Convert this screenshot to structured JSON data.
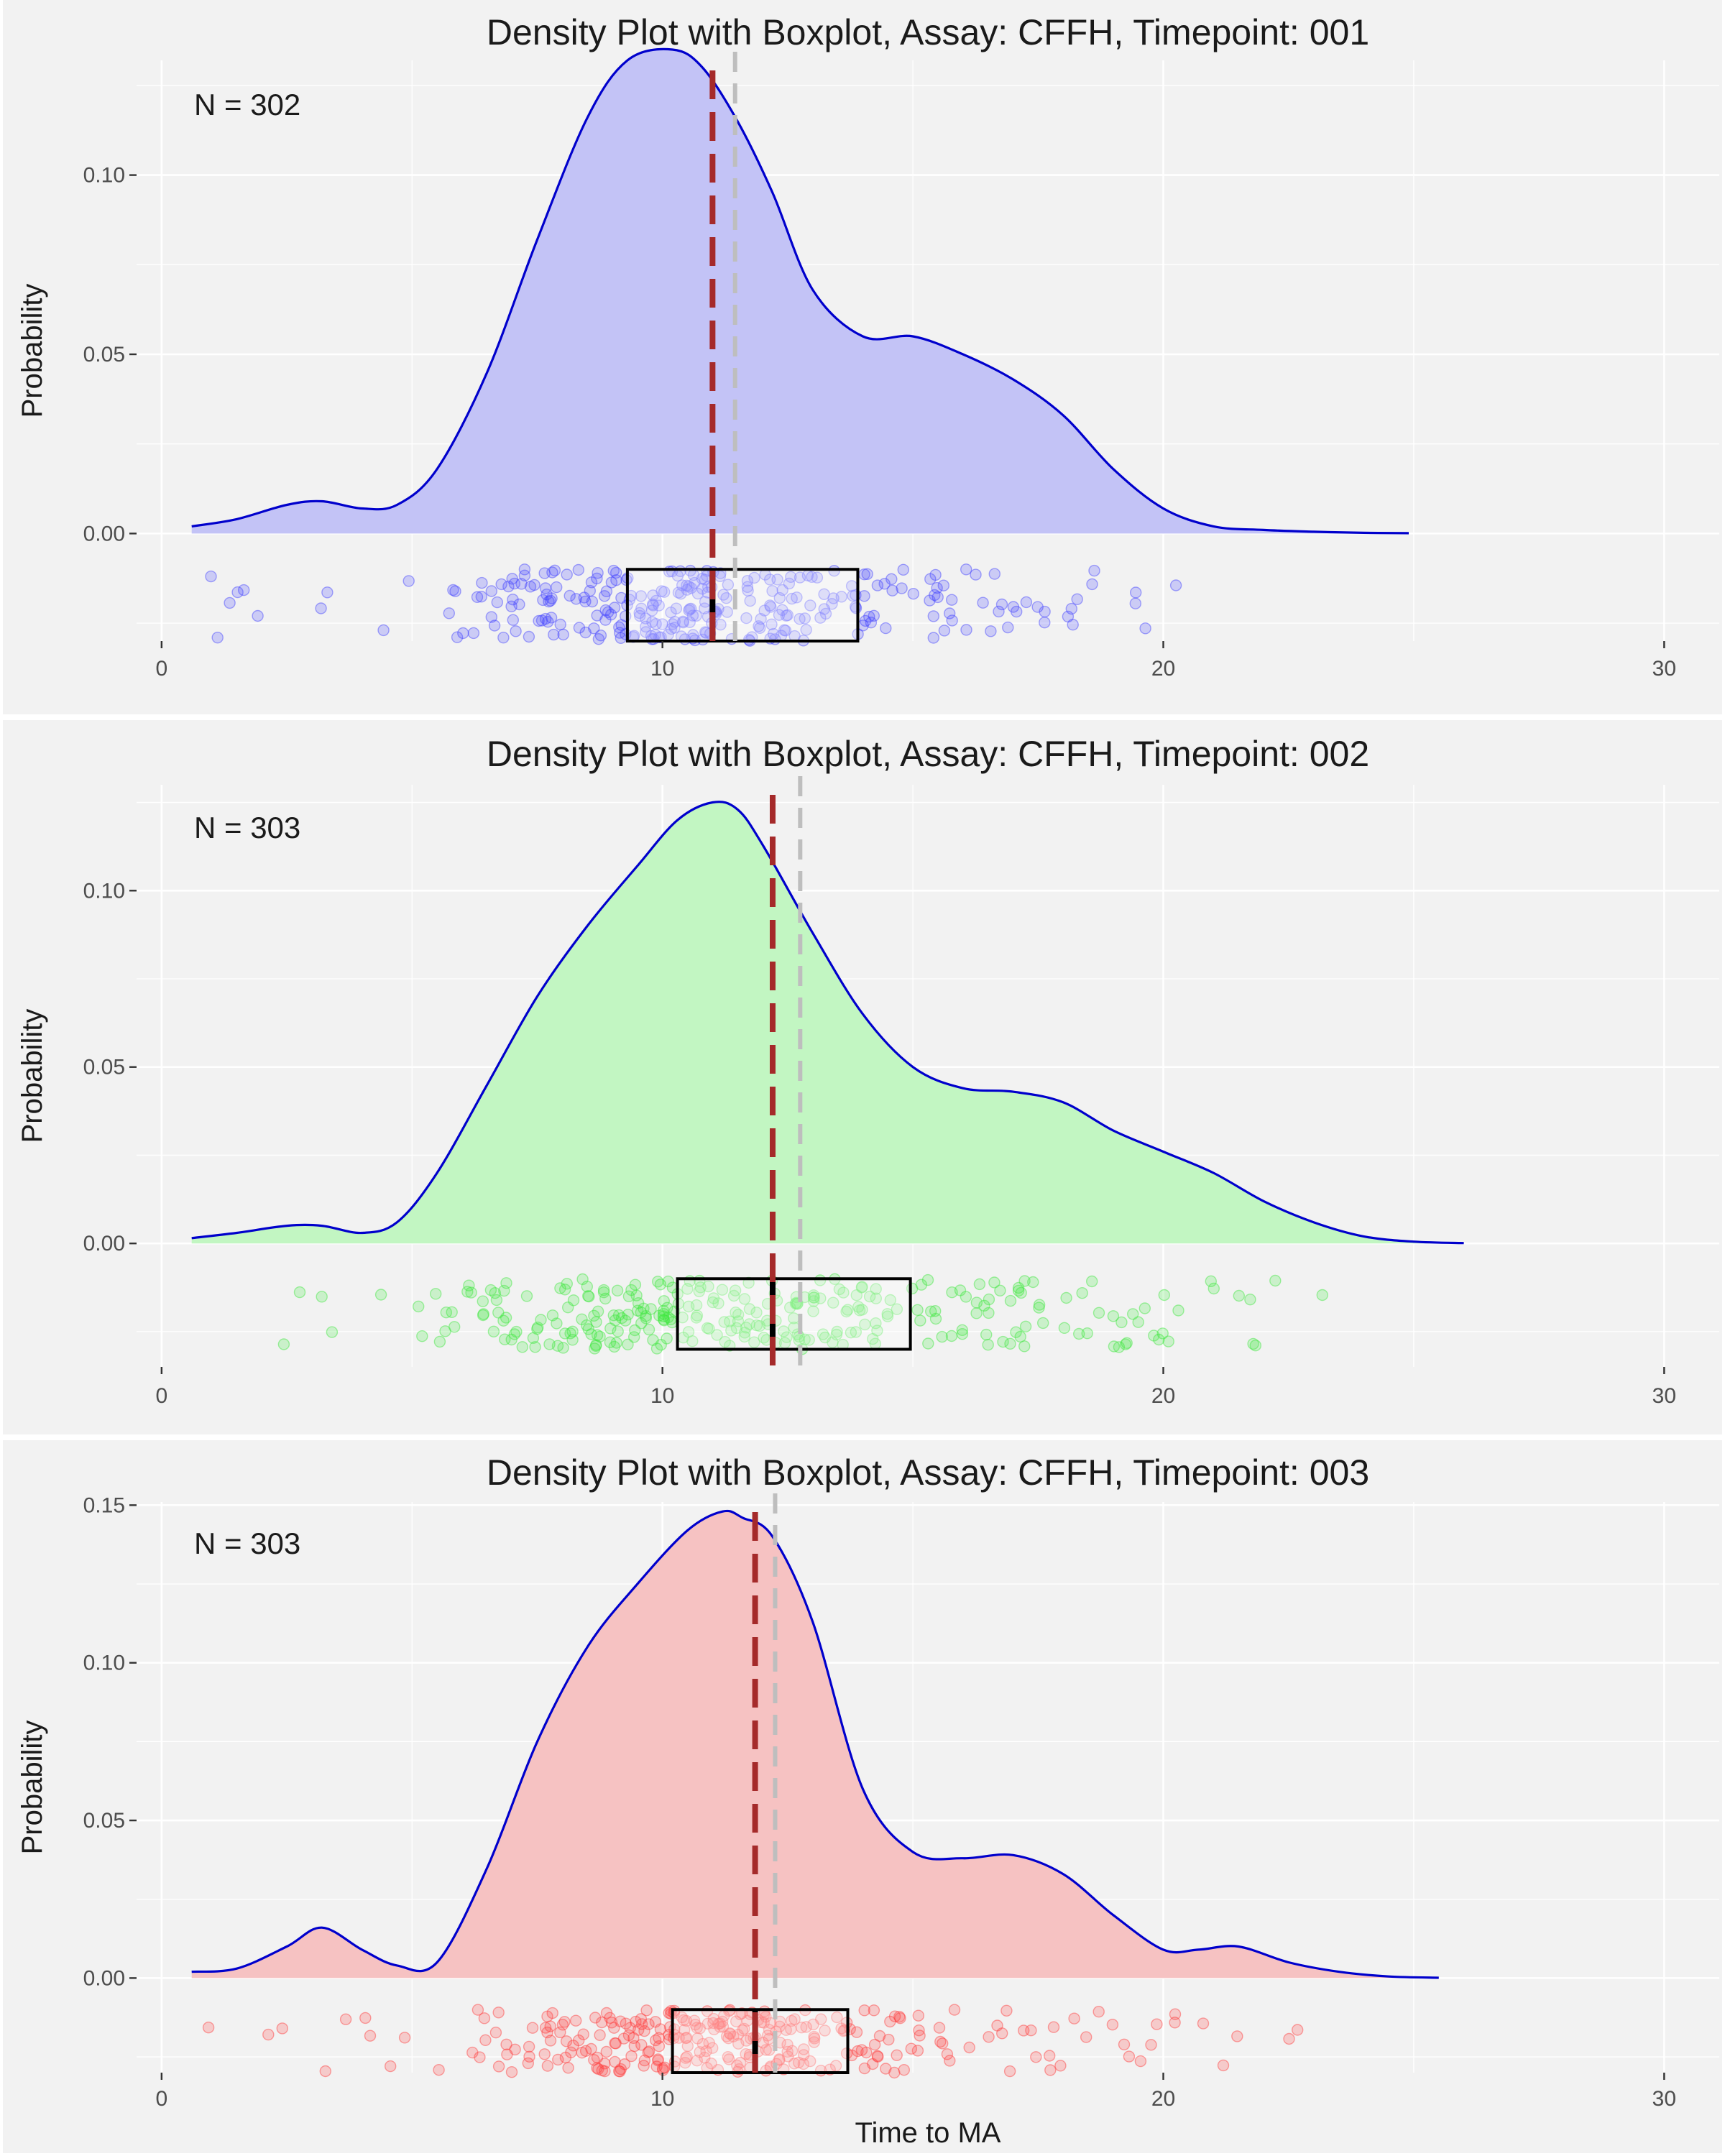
{
  "colors": {
    "panel_background": "#f2f2f2",
    "grid": "#ffffff",
    "density_line": "#0000cc",
    "median_line": "#a52a2a",
    "mean_line": "#bebebe",
    "box": "#000000"
  },
  "chart_data": [
    {
      "type": "area",
      "subtype": "density_with_boxplot",
      "title": "Density Plot with Boxplot, Assay: CFFH, Timepoint: 001",
      "annotation": "N = 302",
      "xlabel": "",
      "ylabel": "Probability",
      "xlim": [
        -0.5,
        31.1
      ],
      "ylim": [
        -0.03,
        0.132
      ],
      "x_ticks": [
        0,
        10,
        20,
        30
      ],
      "x_tick_labels": [
        "0",
        "10",
        "20",
        "30"
      ],
      "y_ticks": [
        0.0,
        0.05,
        0.1
      ],
      "y_tick_labels": [
        "0.00",
        "0.05",
        "0.10"
      ],
      "fill_color": "#c3c3f6",
      "point_color": "#4040ff",
      "density": {
        "x": [
          0.6,
          1.5,
          2.5,
          3.2,
          4.0,
          4.7,
          5.5,
          6.5,
          7.5,
          8.5,
          9.3,
          10.2,
          10.8,
          11.5,
          12.2,
          13.0,
          14.0,
          15.0,
          16.0,
          17.0,
          18.0,
          19.0,
          20.0,
          21.0,
          22.0,
          23.0,
          24.0,
          24.9
        ],
        "y": [
          0.002,
          0.004,
          0.008,
          0.009,
          0.007,
          0.008,
          0.018,
          0.045,
          0.082,
          0.116,
          0.132,
          0.135,
          0.13,
          0.115,
          0.095,
          0.068,
          0.055,
          0.055,
          0.05,
          0.043,
          0.033,
          0.018,
          0.007,
          0.002,
          0.001,
          0.0005,
          0.0002,
          0.0001
        ]
      },
      "median": 11.0,
      "mean": 11.45,
      "boxplot": {
        "q1": 9.3,
        "median": 11.0,
        "q3": 13.9
      }
    },
    {
      "type": "area",
      "subtype": "density_with_boxplot",
      "title": "Density Plot with Boxplot, Assay: CFFH, Timepoint: 002",
      "annotation": "N = 303",
      "xlabel": "",
      "ylabel": "Probability",
      "xlim": [
        -0.5,
        31.1
      ],
      "ylim": [
        -0.035,
        0.13
      ],
      "x_ticks": [
        0,
        10,
        20,
        30
      ],
      "x_tick_labels": [
        "0",
        "10",
        "20",
        "30"
      ],
      "y_ticks": [
        0.0,
        0.05,
        0.1
      ],
      "y_tick_labels": [
        "0.00",
        "0.05",
        "0.10"
      ],
      "fill_color": "#c2f6c2",
      "point_color": "#3ce63c",
      "density": {
        "x": [
          0.6,
          1.5,
          2.5,
          3.2,
          4.0,
          4.7,
          5.5,
          6.5,
          7.5,
          8.5,
          9.5,
          10.3,
          11.0,
          11.5,
          12.0,
          13.0,
          14.0,
          15.0,
          16.0,
          17.0,
          18.0,
          19.0,
          20.0,
          21.0,
          22.0,
          23.0,
          24.0,
          25.0,
          26.0
        ],
        "y": [
          0.0015,
          0.003,
          0.005,
          0.005,
          0.003,
          0.006,
          0.02,
          0.045,
          0.07,
          0.09,
          0.107,
          0.12,
          0.125,
          0.123,
          0.113,
          0.088,
          0.065,
          0.05,
          0.044,
          0.043,
          0.04,
          0.032,
          0.026,
          0.02,
          0.012,
          0.006,
          0.002,
          0.0005,
          0.0001
        ]
      },
      "median": 12.2,
      "mean": 12.75,
      "boxplot": {
        "q1": 10.3,
        "median": 12.2,
        "q3": 14.95
      }
    },
    {
      "type": "area",
      "subtype": "density_with_boxplot",
      "title": "Density Plot with Boxplot, Assay: CFFH, Timepoint: 003",
      "annotation": "N = 303",
      "xlabel": "Time to MA",
      "ylabel": "Probability",
      "xlim": [
        -0.5,
        31.1
      ],
      "ylim": [
        -0.03,
        0.151
      ],
      "x_ticks": [
        0,
        10,
        20,
        30
      ],
      "x_tick_labels": [
        "0",
        "10",
        "20",
        "30"
      ],
      "y_ticks": [
        0.0,
        0.05,
        0.1,
        0.15
      ],
      "y_tick_labels": [
        "0.00",
        "0.05",
        "0.10",
        "0.15"
      ],
      "fill_color": "#f6c2c2",
      "point_color": "#ff3a3a",
      "density": {
        "x": [
          0.6,
          1.5,
          2.5,
          3.2,
          4.0,
          4.7,
          5.5,
          6.5,
          7.5,
          8.5,
          9.5,
          10.5,
          11.2,
          11.6,
          12.2,
          13.0,
          14.0,
          15.0,
          16.0,
          17.0,
          18.0,
          19.0,
          20.0,
          20.7,
          21.5,
          22.5,
          23.5,
          24.5,
          25.5
        ],
        "y": [
          0.002,
          0.003,
          0.01,
          0.016,
          0.009,
          0.004,
          0.005,
          0.035,
          0.075,
          0.105,
          0.125,
          0.142,
          0.148,
          0.146,
          0.14,
          0.113,
          0.06,
          0.04,
          0.038,
          0.039,
          0.033,
          0.02,
          0.009,
          0.009,
          0.01,
          0.005,
          0.002,
          0.0005,
          0.0001
        ]
      },
      "median": 11.85,
      "mean": 12.25,
      "boxplot": {
        "q1": 10.2,
        "median": 11.85,
        "q3": 13.7
      }
    }
  ]
}
